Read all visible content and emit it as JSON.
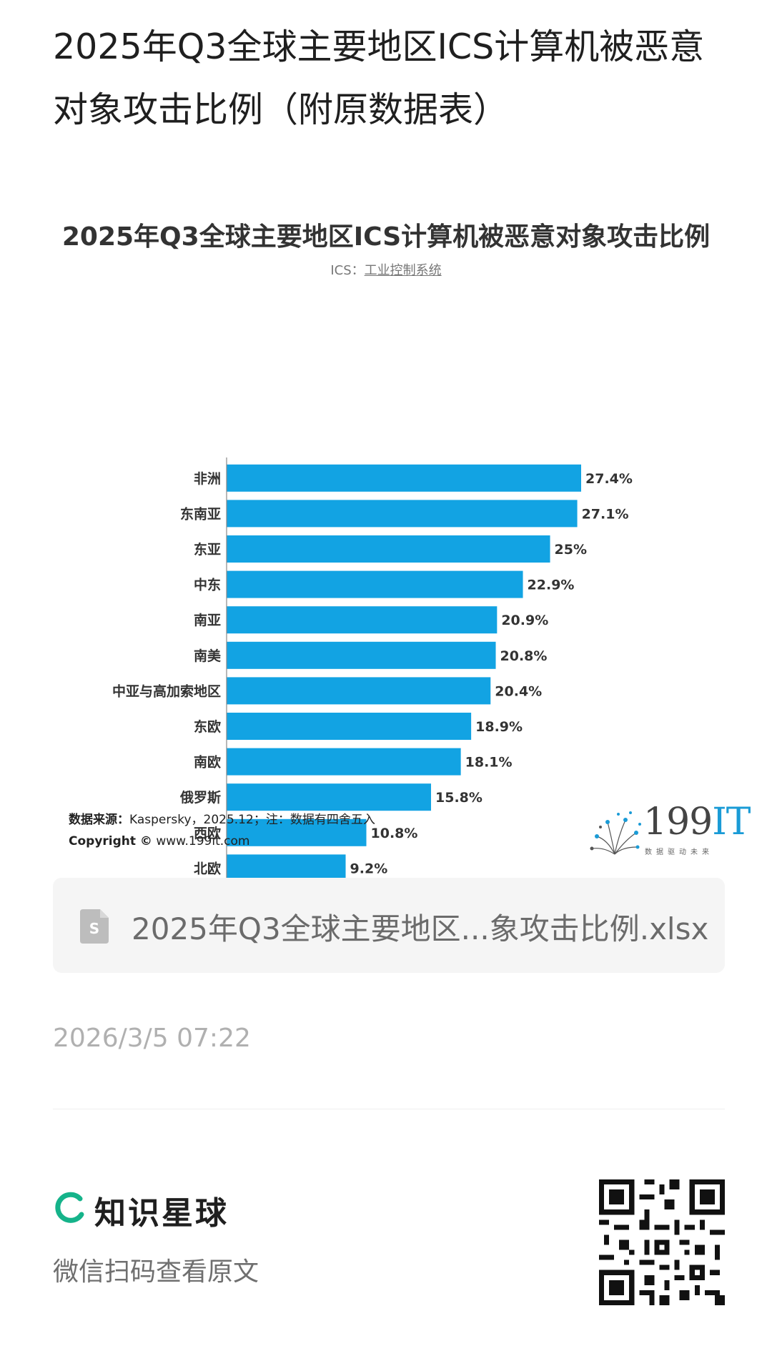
{
  "page": {
    "title": "2025年Q3全球主要地区ICS计算机被恶意对象攻击比例（附原数据表）"
  },
  "infographic": {
    "title": "2025年Q3全球主要地区ICS计算机被恶意对象攻击比例",
    "subtitle_prefix": "ICS：",
    "subtitle_term": "工业控制系统",
    "source_label": "数据来源：",
    "source_text": "Kaspersky，2025.12；注：数据有四舍五入",
    "copyright_label": "Copyright ©",
    "copyright_url": "www.199it.com",
    "logo_number": "199",
    "logo_it": "IT",
    "logo_tagline": "数据驱动未来"
  },
  "chart_data": {
    "type": "bar",
    "orientation": "horizontal",
    "categories": [
      "非洲",
      "东南亚",
      "东亚",
      "中东",
      "南亚",
      "南美",
      "中亚与高加索地区",
      "东欧",
      "南欧",
      "俄罗斯",
      "西欧",
      "北欧"
    ],
    "values": [
      27.4,
      27.1,
      25,
      22.9,
      20.9,
      20.8,
      20.4,
      18.9,
      18.1,
      15.8,
      10.8,
      9.2
    ],
    "value_labels": [
      "27.4%",
      "27.1%",
      "25%",
      "22.9%",
      "20.9%",
      "20.8%",
      "20.4%",
      "18.9%",
      "18.1%",
      "15.8%",
      "10.8%",
      "9.2%"
    ],
    "x_ticks": [
      0,
      5,
      10,
      15,
      20,
      25,
      27.4
    ],
    "x_tick_labels": [
      "0%",
      "5%",
      "10%",
      "15%",
      "20%",
      "25%",
      "27.4%"
    ],
    "xlim": [
      0,
      27.4
    ],
    "grid": false,
    "bar_color": "#12a3e3"
  },
  "attachment": {
    "file_name": "2025年Q3全球主要地区...象攻击比例.xlsx",
    "icon": "spreadsheet-file-icon"
  },
  "post": {
    "timestamp": "2026/3/5 07:22"
  },
  "footer": {
    "brand_name": "知识星球",
    "brand_icon": "zsxq-logo-icon",
    "brand_color": "#15b38a",
    "scan_text": "微信扫码查看原文",
    "qr_icon": "qr-code-icon"
  }
}
